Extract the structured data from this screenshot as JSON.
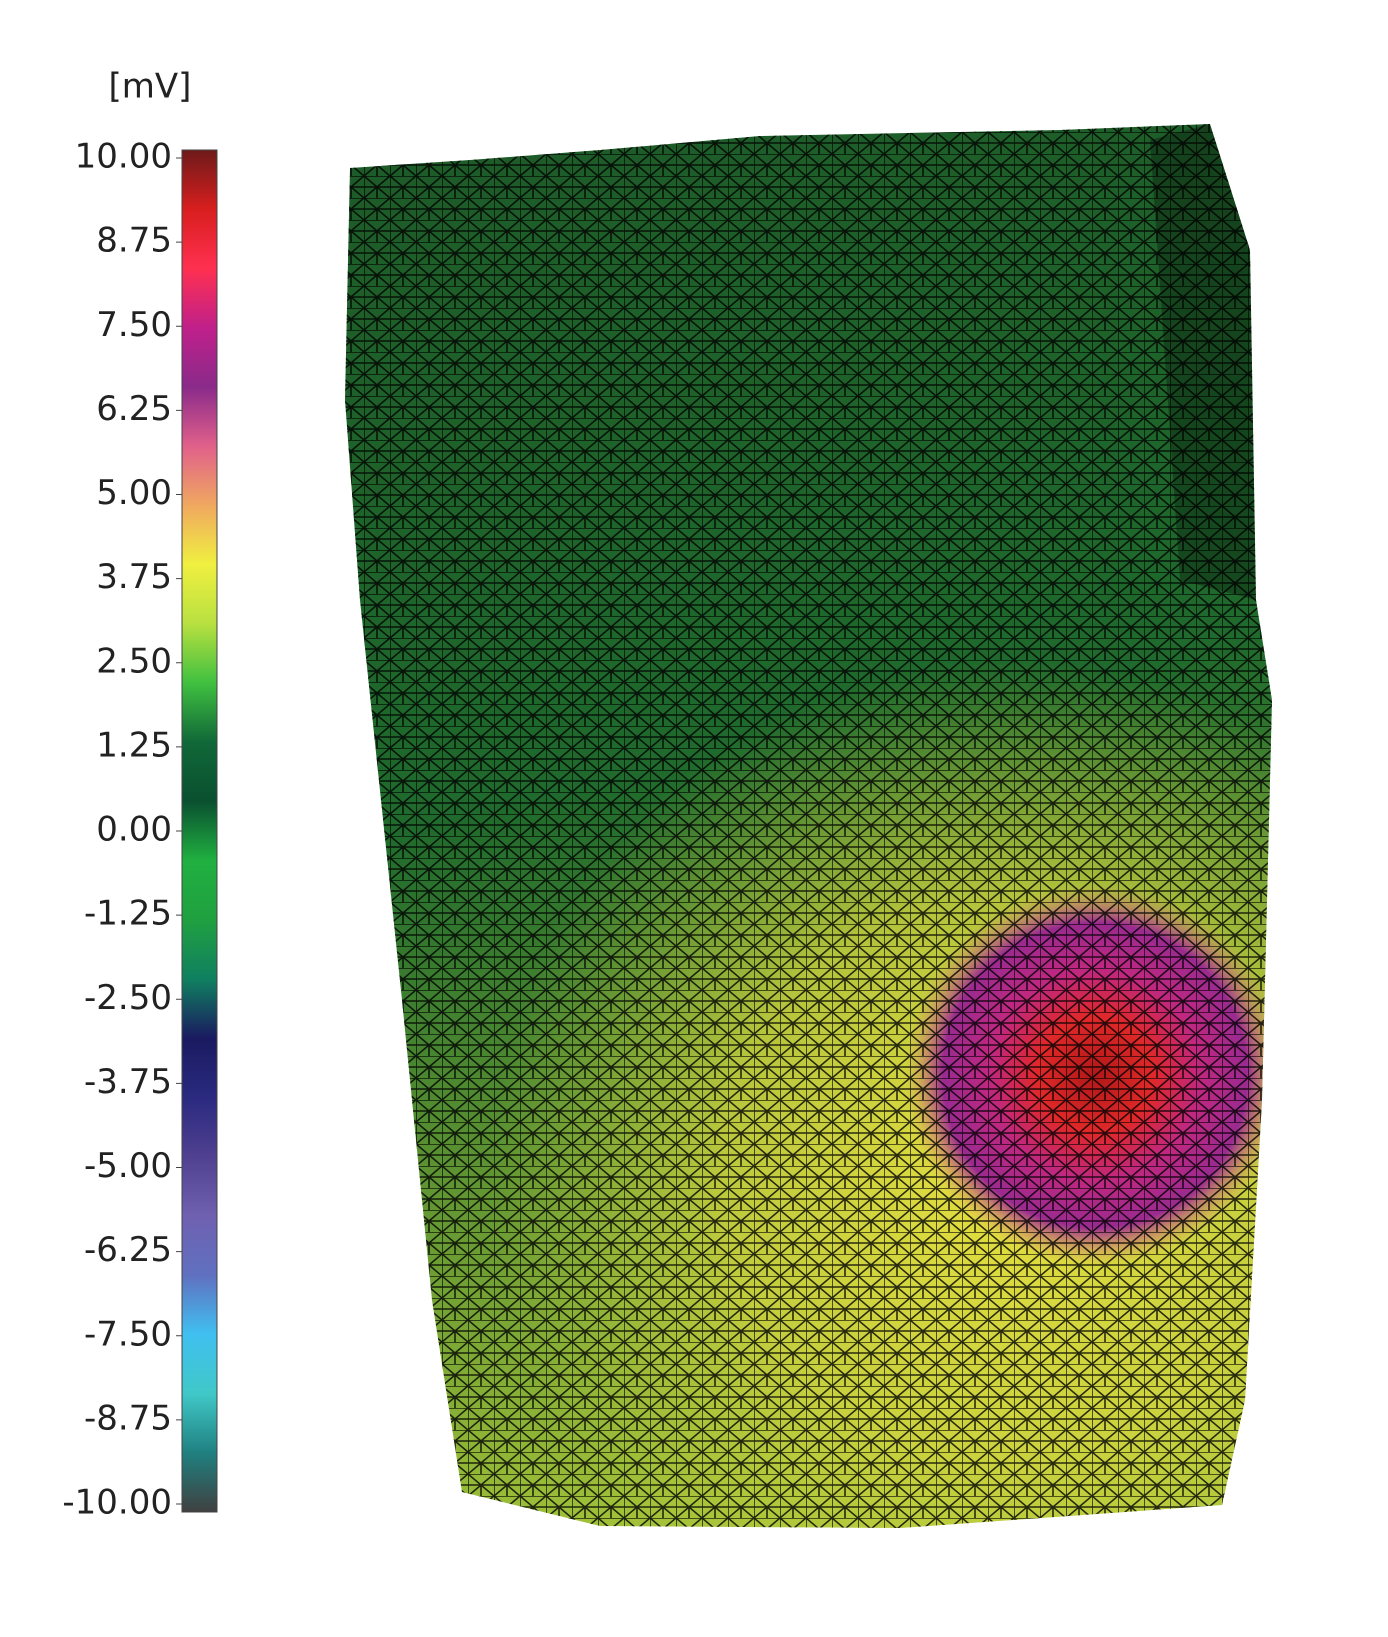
{
  "chart_data": {
    "type": "colormap-surface",
    "colorbar": {
      "label": "[mV]",
      "lim": [
        -10,
        10
      ],
      "ticks": [
        {
          "value": 10,
          "label": "10.00"
        },
        {
          "value": 8.75,
          "label": "8.75"
        },
        {
          "value": 7.5,
          "label": "7.50"
        },
        {
          "value": 6.25,
          "label": "6.25"
        },
        {
          "value": 5,
          "label": "5.00"
        },
        {
          "value": 3.75,
          "label": "3.75"
        },
        {
          "value": 2.5,
          "label": "2.50"
        },
        {
          "value": 1.25,
          "label": "1.25"
        },
        {
          "value": 0,
          "label": "0.00"
        },
        {
          "value": -1.25,
          "label": "-1.25"
        },
        {
          "value": -2.5,
          "label": "-2.50"
        },
        {
          "value": -3.75,
          "label": "-3.75"
        },
        {
          "value": -5,
          "label": "-5.00"
        },
        {
          "value": -6.25,
          "label": "-6.25"
        },
        {
          "value": -7.5,
          "label": "-7.50"
        },
        {
          "value": -8.75,
          "label": "-8.75"
        },
        {
          "value": -10,
          "label": "-10.00"
        }
      ],
      "colors": [
        "#6e1a1a",
        "#d81e1e",
        "#ff3050",
        "#c0208a",
        "#8a2a8a",
        "#e0608a",
        "#f0a860",
        "#f0f040",
        "#b8e040",
        "#40c040",
        "#106838",
        "#0a5030",
        "#20b040",
        "#20a040",
        "#108060",
        "#1a1a60",
        "#2a2a80",
        "#504090",
        "#7060b0",
        "#6070c0",
        "#40c0f0",
        "#40c8c8",
        "#208080",
        "#404040"
      ]
    }
  }
}
